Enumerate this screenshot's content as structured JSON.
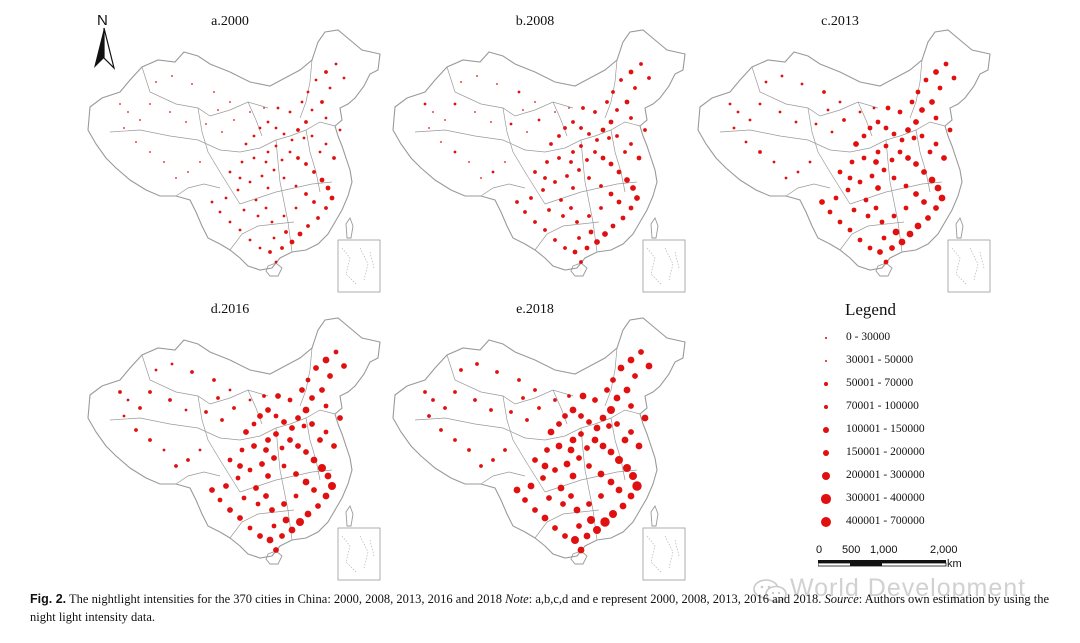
{
  "figure": {
    "north_label": "N",
    "panels": [
      {
        "id": "a",
        "title": "a.2000"
      },
      {
        "id": "b",
        "title": "b.2008"
      },
      {
        "id": "c",
        "title": "c.2013"
      },
      {
        "id": "d",
        "title": "d.2016"
      },
      {
        "id": "e",
        "title": "e.2018"
      }
    ],
    "dot_color": "#e01010",
    "border_color": "#9a9a9a"
  },
  "legend": {
    "title": "Legend",
    "classes": [
      {
        "label": "0 - 30000",
        "level": 1
      },
      {
        "label": "30001 - 50000",
        "level": 2
      },
      {
        "label": "50001 - 70000",
        "level": 3
      },
      {
        "label": "70001 - 100000",
        "level": 4
      },
      {
        "label": "100001 - 150000",
        "level": 5
      },
      {
        "label": "150001 - 200000",
        "level": 6
      },
      {
        "label": "200001 - 300000",
        "level": 7
      },
      {
        "label": "300001 - 400000",
        "level": 8
      },
      {
        "label": "400001 - 700000",
        "level": 9
      }
    ]
  },
  "scalebar": {
    "ticks": [
      "0",
      "500",
      "1,000",
      "2,000"
    ],
    "unit": "km"
  },
  "caption": {
    "fig_label": "Fig. 2.",
    "text": "The nightlight intensities for the 370 cities in China: 2000, 2008, 2013, 2016 and 2018",
    "note_label": "Note",
    "note_text": ": a,b,c,d and e represent 2000, 2008, 2013, 2016 and 2018.",
    "source_label": "Source",
    "source_text": ": Authors own estimation by using the night light intensity data."
  },
  "watermark": {
    "text": "World Development"
  }
}
